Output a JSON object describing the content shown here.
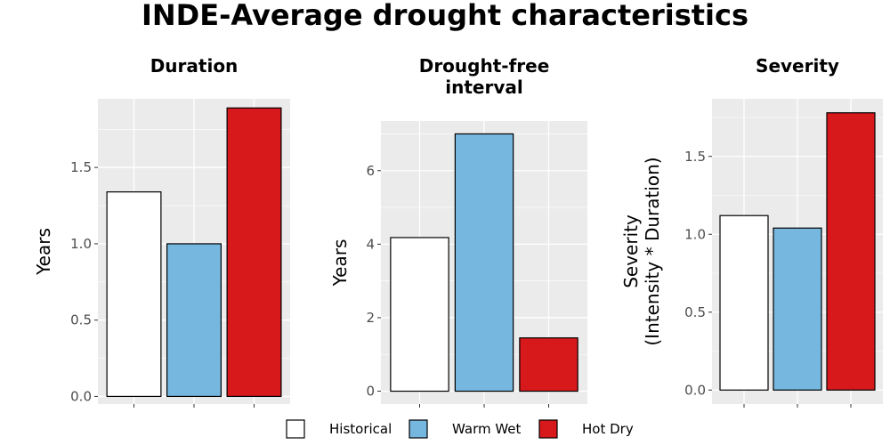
{
  "title": "INDE-Average drought characteristics",
  "legend": {
    "position": "bottom",
    "items": [
      {
        "label": "Historical",
        "color": "#ffffff"
      },
      {
        "label": "Warm Wet",
        "color": "#76b7e0"
      },
      {
        "label": "Hot Dry",
        "color": "#d7191c"
      }
    ]
  },
  "colors": {
    "panel_background": "#ebebeb",
    "gridline": "#ffffff",
    "bar_outline": "#000000"
  },
  "chart_data": [
    {
      "type": "bar",
      "title_lines": [
        "Duration"
      ],
      "ylabel_lines": [
        "Years"
      ],
      "categories": [
        "Historical",
        "Warm Wet",
        "Hot Dry"
      ],
      "values": [
        1.34,
        1.0,
        1.89
      ],
      "ylim": [
        -0.05,
        1.95
      ],
      "yticks": [
        0.0,
        0.5,
        1.0,
        1.5
      ],
      "ytick_labels": [
        "0.0",
        "0.5",
        "1.0",
        "1.5"
      ],
      "grid": true
    },
    {
      "type": "bar",
      "title_lines": [
        "Drought-free",
        "interval"
      ],
      "ylabel_lines": [
        "Years"
      ],
      "categories": [
        "Historical",
        "Warm Wet",
        "Hot Dry"
      ],
      "values": [
        4.18,
        7.0,
        1.45
      ],
      "ylim": [
        -0.35,
        7.35
      ],
      "yticks": [
        0,
        2,
        4,
        6
      ],
      "ytick_labels": [
        "0",
        "2",
        "4",
        "6"
      ],
      "grid": true
    },
    {
      "type": "bar",
      "title_lines": [
        "Severity"
      ],
      "ylabel_lines": [
        "Severity",
        "(Intensity * Duration)"
      ],
      "categories": [
        "Historical",
        "Warm Wet",
        "Hot Dry"
      ],
      "values": [
        1.12,
        1.04,
        1.78
      ],
      "ylim": [
        -0.09,
        1.87
      ],
      "yticks": [
        0.0,
        0.5,
        1.0,
        1.5
      ],
      "ytick_labels": [
        "0.0",
        "0.5",
        "1.0",
        "1.5"
      ],
      "grid": true
    }
  ]
}
